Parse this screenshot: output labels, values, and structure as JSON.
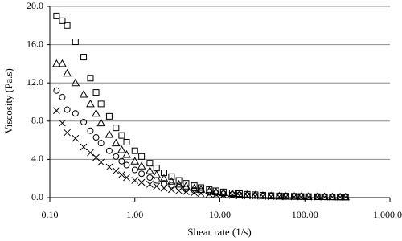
{
  "chart_data": {
    "type": "scatter",
    "xlabel": "Shear rate (1/s)",
    "ylabel": "Viscosity (Pa.s)",
    "xscale": "log",
    "grid": true,
    "xlim": [
      0.1,
      1000
    ],
    "xticks": [
      {
        "value": 0.1,
        "label": "0.10"
      },
      {
        "value": 1,
        "label": "1.00"
      },
      {
        "value": 10,
        "label": "10.00"
      },
      {
        "value": 100,
        "label": "100.00"
      },
      {
        "value": 1000,
        "label": "1,000.00"
      }
    ],
    "ylim": [
      0,
      20
    ],
    "yticks": [
      {
        "value": 0,
        "label": "0.0"
      },
      {
        "value": 4,
        "label": "4.0"
      },
      {
        "value": 8,
        "label": "8.0"
      },
      {
        "value": 12,
        "label": "12.0"
      },
      {
        "value": 16,
        "label": "16.0"
      },
      {
        "value": 20,
        "label": "20.0"
      }
    ],
    "x": [
      0.12,
      0.14,
      0.16,
      0.2,
      0.25,
      0.3,
      0.35,
      0.4,
      0.5,
      0.6,
      0.7,
      0.8,
      1.0,
      1.2,
      1.5,
      1.8,
      2.2,
      2.7,
      3.3,
      4,
      5,
      6,
      7.5,
      9,
      11,
      14,
      17,
      21,
      26,
      32,
      40,
      50,
      60,
      75,
      90,
      110,
      140,
      170,
      210,
      260,
      300
    ],
    "series": [
      {
        "marker": "square",
        "color": "#000000",
        "values": [
          19.0,
          18.5,
          18.0,
          16.3,
          14.7,
          12.5,
          11.0,
          9.8,
          8.5,
          7.3,
          6.5,
          5.8,
          4.9,
          4.3,
          3.6,
          3.1,
          2.6,
          2.2,
          1.8,
          1.5,
          1.25,
          1.05,
          0.85,
          0.72,
          0.6,
          0.5,
          0.42,
          0.35,
          0.3,
          0.25,
          0.21,
          0.18,
          0.16,
          0.14,
          0.12,
          0.11,
          0.1,
          0.09,
          0.08,
          0.08,
          0.07
        ]
      },
      {
        "marker": "triangle",
        "color": "#000000",
        "values": [
          14.0,
          14.0,
          13.0,
          12.0,
          10.8,
          9.8,
          8.8,
          7.8,
          6.6,
          5.7,
          5.0,
          4.5,
          3.8,
          3.3,
          2.8,
          2.4,
          2.0,
          1.7,
          1.4,
          1.2,
          1.0,
          0.85,
          0.7,
          0.6,
          0.5,
          0.42,
          0.35,
          0.3,
          0.25,
          0.21,
          0.18,
          0.15,
          0.13,
          0.12,
          0.1,
          0.09,
          0.08,
          0.08,
          0.07,
          0.06,
          0.06
        ]
      },
      {
        "marker": "circle",
        "color": "#000000",
        "values": [
          11.2,
          10.5,
          9.2,
          8.8,
          7.9,
          7.0,
          6.3,
          5.7,
          4.9,
          4.3,
          3.8,
          3.4,
          2.9,
          2.5,
          2.1,
          1.8,
          1.5,
          1.3,
          1.1,
          0.9,
          0.75,
          0.65,
          0.55,
          0.47,
          0.4,
          0.33,
          0.28,
          0.24,
          0.2,
          0.17,
          0.15,
          0.13,
          0.11,
          0.1,
          0.09,
          0.08,
          0.07,
          0.06,
          0.06,
          0.05,
          0.05
        ]
      },
      {
        "marker": "cross",
        "color": "#000000",
        "values": [
          9.1,
          7.8,
          6.8,
          6.2,
          5.3,
          4.7,
          4.2,
          3.7,
          3.2,
          2.8,
          2.4,
          2.1,
          1.8,
          1.6,
          1.4,
          1.2,
          1.0,
          0.85,
          0.72,
          0.62,
          0.52,
          0.45,
          0.38,
          0.32,
          0.27,
          0.23,
          0.2,
          0.17,
          0.15,
          0.13,
          0.11,
          0.1,
          0.09,
          0.08,
          0.07,
          0.06,
          0.06,
          0.05,
          0.05,
          0.04,
          0.04
        ]
      }
    ]
  }
}
